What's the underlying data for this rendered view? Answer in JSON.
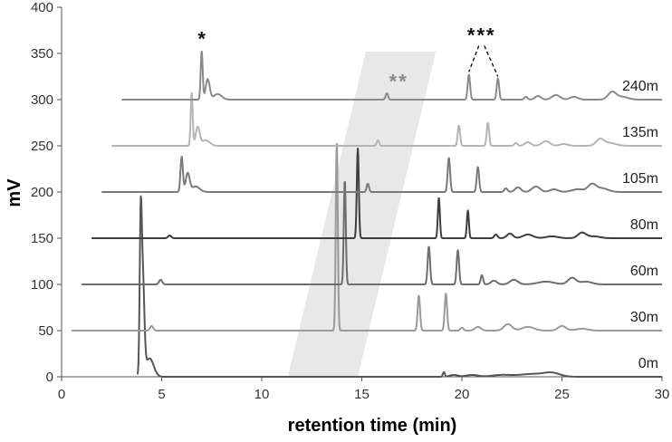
{
  "chart_data": {
    "type": "line",
    "xlabel": "retention time (min)",
    "ylabel": "mV",
    "xlim": [
      0,
      30
    ],
    "ylim": [
      0,
      400
    ],
    "x_ticks": [
      "0",
      "5",
      "10",
      "15",
      "20",
      "25",
      "30"
    ],
    "y_ticks": [
      "0",
      "50",
      "100",
      "150",
      "200",
      "250",
      "300",
      "350",
      "400"
    ],
    "grid": false,
    "series": [
      {
        "name": "0m",
        "baseline": 0,
        "x_start": 3.8,
        "color": "#555555",
        "peaks": [
          [
            3.95,
            138,
            0.05
          ],
          [
            4.05,
            110,
            0.08
          ],
          [
            4.4,
            20,
            0.2
          ],
          [
            19.1,
            5,
            0.05
          ],
          [
            19.6,
            2,
            0.2
          ],
          [
            20.5,
            2,
            0.3
          ],
          [
            22.0,
            2,
            0.5
          ],
          [
            23.5,
            3,
            0.6
          ],
          [
            24.5,
            4,
            0.4
          ]
        ]
      },
      {
        "name": "30m",
        "baseline": 50,
        "x_start": 0.5,
        "color": "#9a9a9a",
        "peaks": [
          [
            4.5,
            5,
            0.08
          ],
          [
            13.75,
            206,
            0.05
          ],
          [
            17.85,
            38,
            0.06
          ],
          [
            19.2,
            40,
            0.06
          ],
          [
            20.0,
            3,
            0.08
          ],
          [
            20.8,
            4,
            0.15
          ],
          [
            22.3,
            7,
            0.2
          ],
          [
            23.3,
            4,
            0.3
          ],
          [
            25.0,
            5,
            0.2
          ],
          [
            26.0,
            2,
            0.3
          ]
        ]
      },
      {
        "name": "60m",
        "baseline": 100,
        "x_start": 1.0,
        "color": "#6e6e6e",
        "peaks": [
          [
            4.95,
            5,
            0.08
          ],
          [
            14.15,
            113,
            0.05
          ],
          [
            18.35,
            41,
            0.06
          ],
          [
            19.8,
            37,
            0.06
          ],
          [
            21.0,
            10,
            0.06
          ],
          [
            21.6,
            4,
            0.15
          ],
          [
            22.6,
            5,
            0.2
          ],
          [
            24.2,
            3,
            0.4
          ],
          [
            25.5,
            7,
            0.2
          ],
          [
            26.2,
            3,
            0.3
          ]
        ]
      },
      {
        "name": "80m",
        "baseline": 150,
        "x_start": 1.5,
        "color": "#3e3e3e",
        "peaks": [
          [
            5.4,
            3,
            0.08
          ],
          [
            14.8,
            97,
            0.05
          ],
          [
            18.85,
            44,
            0.05
          ],
          [
            20.3,
            30,
            0.05
          ],
          [
            21.7,
            4,
            0.08
          ],
          [
            22.4,
            5,
            0.15
          ],
          [
            23.3,
            4,
            0.25
          ],
          [
            24.5,
            2,
            0.3
          ],
          [
            26.0,
            6,
            0.2
          ],
          [
            26.6,
            2,
            0.3
          ]
        ]
      },
      {
        "name": "105m",
        "baseline": 200,
        "x_start": 2.0,
        "color": "#7a7a7a",
        "peaks": [
          [
            6.0,
            38,
            0.06
          ],
          [
            6.3,
            20,
            0.1
          ],
          [
            6.7,
            6,
            0.2
          ],
          [
            15.3,
            9,
            0.06
          ],
          [
            19.35,
            37,
            0.06
          ],
          [
            20.8,
            27,
            0.06
          ],
          [
            22.2,
            4,
            0.08
          ],
          [
            22.8,
            5,
            0.15
          ],
          [
            23.7,
            6,
            0.2
          ],
          [
            24.6,
            3,
            0.2
          ],
          [
            25.8,
            3,
            0.3
          ],
          [
            26.5,
            8,
            0.2
          ],
          [
            27.0,
            4,
            0.3
          ]
        ]
      },
      {
        "name": "135m",
        "baseline": 250,
        "x_start": 2.5,
        "color": "#b5b5b5",
        "peaks": [
          [
            6.5,
            57,
            0.05
          ],
          [
            6.8,
            20,
            0.1
          ],
          [
            7.2,
            6,
            0.2
          ],
          [
            15.8,
            6,
            0.06
          ],
          [
            19.85,
            22,
            0.06
          ],
          [
            21.3,
            25,
            0.06
          ],
          [
            22.7,
            3,
            0.08
          ],
          [
            23.3,
            4,
            0.15
          ],
          [
            24.2,
            5,
            0.2
          ],
          [
            25.1,
            2,
            0.2
          ],
          [
            26.9,
            7,
            0.2
          ],
          [
            27.4,
            3,
            0.3
          ]
        ]
      },
      {
        "name": "240m",
        "baseline": 300,
        "x_start": 3.0,
        "color": "#8a8a8a",
        "peaks": [
          [
            7.0,
            52,
            0.05
          ],
          [
            7.3,
            22,
            0.1
          ],
          [
            7.8,
            6,
            0.2
          ],
          [
            16.25,
            7,
            0.06
          ],
          [
            20.35,
            27,
            0.06
          ],
          [
            21.8,
            23,
            0.06
          ],
          [
            23.2,
            3,
            0.08
          ],
          [
            23.8,
            4,
            0.15
          ],
          [
            24.7,
            5,
            0.2
          ],
          [
            25.6,
            3,
            0.2
          ],
          [
            27.5,
            8,
            0.2
          ],
          [
            28.0,
            3,
            0.3
          ]
        ]
      }
    ],
    "annotations": {
      "single": {
        "text": "*",
        "x": 7.0,
        "y": 370
      },
      "double": {
        "text": "**",
        "x": 16.3,
        "y": 320
      },
      "triple": {
        "text": "***",
        "x": 20.35,
        "y": 372,
        "arrow_tips": [
          [
            20.35,
            330
          ],
          [
            21.8,
            325
          ]
        ]
      }
    },
    "highlight_band": {
      "color": "#e8e8e8",
      "polygon": [
        [
          11.3,
          0
        ],
        [
          14.8,
          0
        ],
        [
          18.7,
          352
        ],
        [
          15.2,
          352
        ]
      ]
    }
  }
}
